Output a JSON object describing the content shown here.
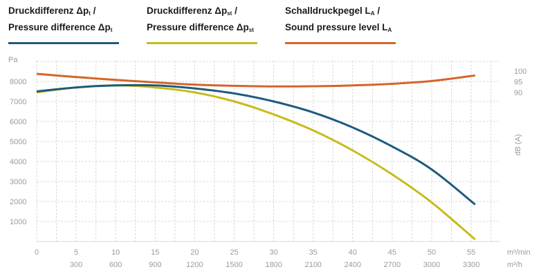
{
  "legend": [
    {
      "line1": "Druckdifferenz Δp",
      "sub1": "t",
      "tail1": " /",
      "line2": "Pressure difference Δp",
      "sub2": "t",
      "tail2": "",
      "color": "#1d5a80"
    },
    {
      "line1": "Druckdifferenz Δp",
      "sub1": "st",
      "tail1": " /",
      "line2": "Pressure difference Δp",
      "sub2": "st",
      "tail2": "",
      "color": "#c7bb1b"
    },
    {
      "line1": "Schalldruckpegel L",
      "sub1": "A",
      "tail1": " /",
      "line2": "Sound pressure level L",
      "sub2": "A",
      "tail2": "",
      "color": "#d4642b"
    }
  ],
  "chart_data": {
    "type": "line",
    "y_left_label": "Pa",
    "y_right_label": "dB (A)",
    "x_unit_primary": "m³/min",
    "x_unit_secondary": "m³/h",
    "xlim": [
      0,
      58
    ],
    "ylim": [
      0,
      9000
    ],
    "x_ticks": [
      "0",
      "5",
      "10",
      "15",
      "20",
      "25",
      "30",
      "35",
      "40",
      "45",
      "50",
      "55"
    ],
    "x2_ticks": [
      "300",
      "600",
      "900",
      "1200",
      "1500",
      "1800",
      "2100",
      "2400",
      "2700",
      "3000",
      "3300"
    ],
    "y_ticks": [
      "1000",
      "2000",
      "3000",
      "4000",
      "5000",
      "6000",
      "7000",
      "8000"
    ],
    "db_ticks": [
      "100",
      "95",
      "90"
    ],
    "grid": true,
    "series": [
      {
        "key": "dpt",
        "color": "#1d5a80",
        "x": [
          0,
          5,
          10,
          15,
          20,
          25,
          30,
          35,
          40,
          45,
          50,
          55.5
        ],
        "y": [
          7500,
          7700,
          7800,
          7800,
          7650,
          7400,
          7000,
          6450,
          5700,
          4750,
          3600,
          1850
        ]
      },
      {
        "key": "dpst",
        "color": "#c7bb1b",
        "x": [
          0,
          5,
          10,
          15,
          20,
          25,
          30,
          35,
          40,
          45,
          50,
          55.5
        ],
        "y": [
          7450,
          7700,
          7800,
          7700,
          7450,
          7000,
          6350,
          5550,
          4550,
          3350,
          1950,
          100
        ]
      },
      {
        "key": "la",
        "color": "#d4642b",
        "x": [
          0,
          5,
          10,
          15,
          20,
          25,
          30,
          35,
          40,
          45,
          50,
          55.5
        ],
        "y": [
          8380,
          8220,
          8080,
          7950,
          7840,
          7780,
          7750,
          7760,
          7800,
          7880,
          8020,
          8300
        ]
      }
    ]
  }
}
